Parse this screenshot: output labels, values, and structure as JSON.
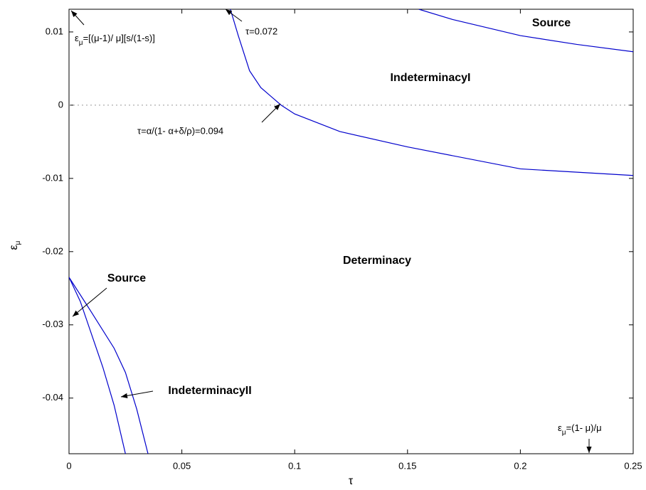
{
  "chart_data": {
    "type": "line",
    "xlabel": "τ",
    "ylabel": {
      "symbol": "ε",
      "subscript": "μ"
    },
    "xlim": [
      0,
      0.25
    ],
    "ylim": [
      -0.0476,
      0.0131
    ],
    "xticks": [
      0,
      0.05,
      0.1,
      0.15,
      0.2,
      0.25
    ],
    "yticks": [
      0.01,
      0,
      -0.01,
      -0.02,
      -0.03,
      -0.04
    ],
    "reference_line": {
      "y": 0,
      "style": "dotted",
      "color": "#999999"
    },
    "series": [
      {
        "color": "#0000cc",
        "x": [
          0.0715,
          0.075,
          0.08,
          0.085,
          0.094,
          0.1,
          0.12,
          0.15,
          0.2,
          0.25
        ],
        "values": [
          0.0131,
          0.0095,
          0.0047,
          0.0024,
          0,
          -0.0012,
          -0.0036,
          -0.0057,
          -0.0087,
          -0.0096
        ]
      },
      {
        "color": "#0000cc",
        "x": [
          0.155,
          0.17,
          0.2,
          0.225,
          0.25
        ],
        "values": [
          0.0131,
          0.0117,
          0.0095,
          0.0083,
          0.0073
        ]
      },
      {
        "color": "#0000cc",
        "x": [
          0,
          0.005,
          0.01,
          0.015,
          0.02,
          0.025
        ],
        "values": [
          -0.0235,
          -0.0268,
          -0.0313,
          -0.0358,
          -0.041,
          -0.0476
        ]
      },
      {
        "color": "#0000cc",
        "x": [
          0,
          0.01,
          0.02,
          0.025,
          0.03,
          0.035
        ],
        "values": [
          -0.0235,
          -0.0283,
          -0.0332,
          -0.0365,
          -0.0415,
          -0.0476
        ]
      }
    ],
    "annotations": [
      {
        "text": "Source"
      },
      {
        "text": "IndeterminacyI"
      },
      {
        "text": "Determinacy"
      },
      {
        "text": "Source"
      },
      {
        "text": "IndeterminacyII"
      },
      {
        "text": "τ=0.072"
      },
      {
        "text": "τ=α/(1- α+δ/ρ)=0.094"
      },
      {
        "symbol": "ε",
        "subscript": "μ",
        "text": "=[(μ-1)/ μ][s/(1-s)]"
      },
      {
        "symbol": "ε",
        "subscript": "μ",
        "text": "=(1- μ)/μ"
      }
    ]
  }
}
